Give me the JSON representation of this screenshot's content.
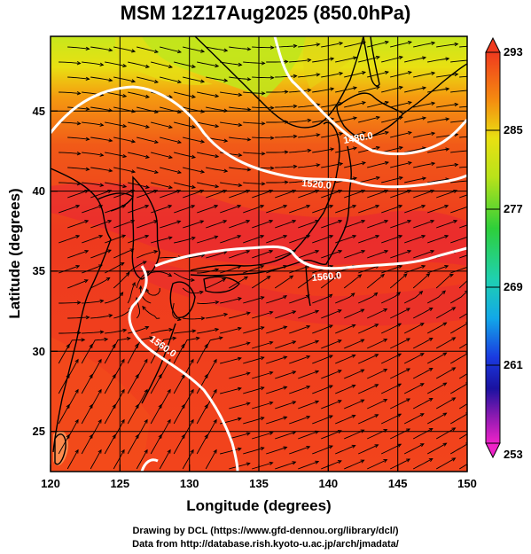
{
  "title": "MSM 12Z17Aug2025 (850.0hPa)",
  "axes": {
    "xlabel": "Longitude (degrees)",
    "ylabel": "Latitude  (degrees)",
    "x_ticks": [
      "120",
      "125",
      "130",
      "135",
      "140",
      "145",
      "150"
    ],
    "y_ticks": [
      "25",
      "30",
      "35",
      "40",
      "45"
    ]
  },
  "colorbar": {
    "labels": [
      "293",
      "285",
      "277",
      "269",
      "261",
      "253"
    ]
  },
  "contours": [
    {
      "label": "1480.0"
    },
    {
      "label": "1520.0"
    },
    {
      "label": "1560.0"
    },
    {
      "label": "1560.0"
    }
  ],
  "credit": {
    "line1": "Drawing by DCL (https://www.gfd-dennou.org/library/dcl/)",
    "line2": "Data from http://database.rish.kyoto-u.ac.jp/arch/jmadata/"
  },
  "colors": {
    "warm": "#f03a1e",
    "hot": "#e8203a",
    "mid": "#f58a10",
    "cool": "#b8e21a",
    "contour": "#ffffff",
    "coast": "#000000"
  }
}
